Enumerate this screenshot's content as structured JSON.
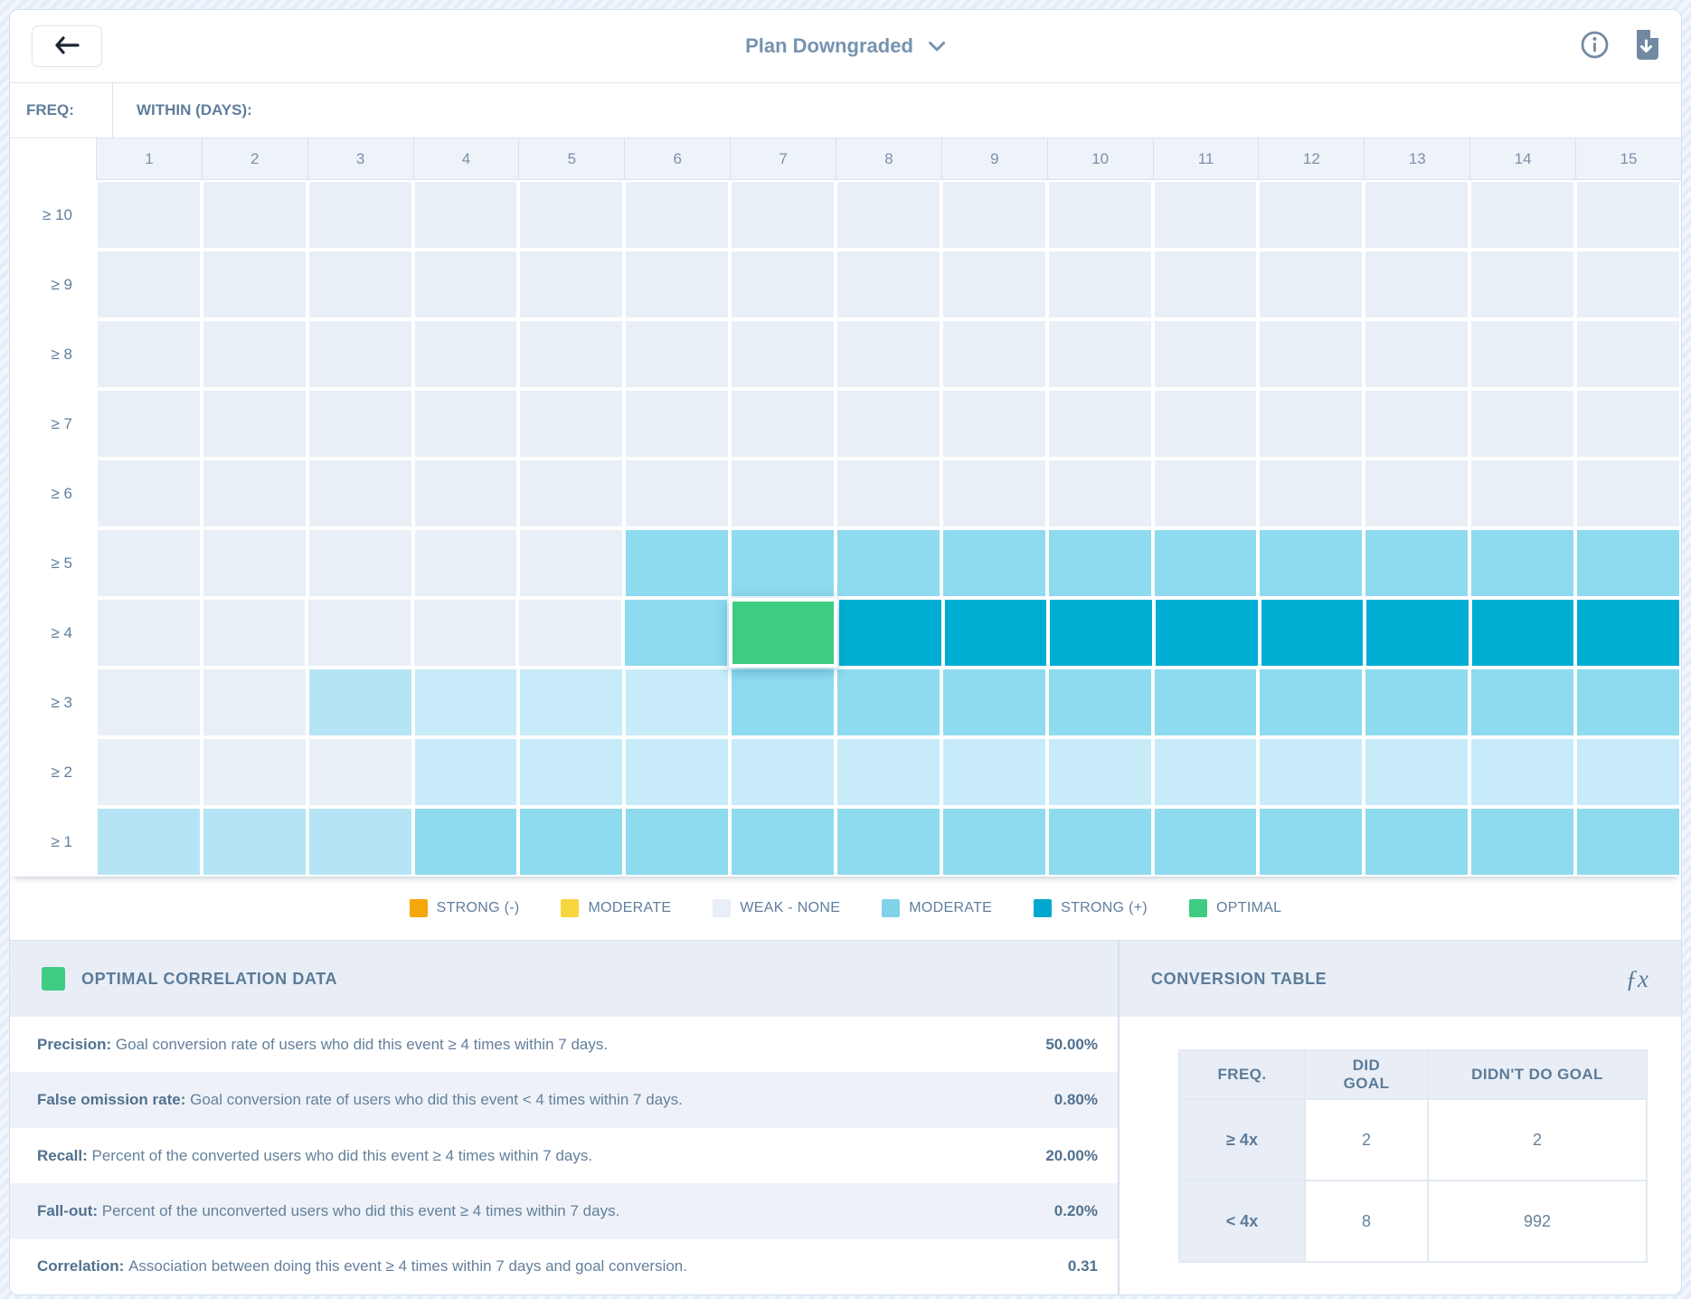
{
  "header": {
    "title": "Plan Downgraded"
  },
  "axes": {
    "freq_label": "FREQ:",
    "within_label": "WITHIN (DAYS):",
    "columns": [
      "1",
      "2",
      "3",
      "4",
      "5",
      "6",
      "7",
      "8",
      "9",
      "10",
      "11",
      "12",
      "13",
      "14",
      "15"
    ],
    "rows": [
      "≥ 10",
      "≥ 9",
      "≥ 8",
      "≥ 7",
      "≥ 6",
      "≥ 5",
      "≥ 4",
      "≥ 3",
      "≥ 2",
      "≥ 1"
    ]
  },
  "colors": {
    "W": "#e9eff7",
    "L": "#c7ebf8",
    "L2": "#b5e5f4",
    "M": "#8edaee",
    "S": "#00aed3",
    "O": "#3ecc83",
    "strong_negative": "#f5a60b",
    "moderate_negative": "#f8d73e",
    "accent_green": "#3ecc83"
  },
  "chart_data": {
    "type": "heatmap",
    "title": "Plan Downgraded",
    "xlabel": "WITHIN (DAYS):",
    "ylabel": "FREQ:",
    "x": [
      1,
      2,
      3,
      4,
      5,
      6,
      7,
      8,
      9,
      10,
      11,
      12,
      13,
      14,
      15
    ],
    "y": [
      "≥ 10",
      "≥ 9",
      "≥ 8",
      "≥ 7",
      "≥ 6",
      "≥ 5",
      "≥ 4",
      "≥ 3",
      "≥ 2",
      "≥ 1"
    ],
    "value_scale": [
      "W = weak-none",
      "L/L2 = weak-moderate",
      "M = moderate",
      "S = strong positive",
      "O = optimal"
    ],
    "cells": [
      [
        "W",
        "W",
        "W",
        "W",
        "W",
        "W",
        "W",
        "W",
        "W",
        "W",
        "W",
        "W",
        "W",
        "W",
        "W"
      ],
      [
        "W",
        "W",
        "W",
        "W",
        "W",
        "W",
        "W",
        "W",
        "W",
        "W",
        "W",
        "W",
        "W",
        "W",
        "W"
      ],
      [
        "W",
        "W",
        "W",
        "W",
        "W",
        "W",
        "W",
        "W",
        "W",
        "W",
        "W",
        "W",
        "W",
        "W",
        "W"
      ],
      [
        "W",
        "W",
        "W",
        "W",
        "W",
        "W",
        "W",
        "W",
        "W",
        "W",
        "W",
        "W",
        "W",
        "W",
        "W"
      ],
      [
        "W",
        "W",
        "W",
        "W",
        "W",
        "W",
        "W",
        "W",
        "W",
        "W",
        "W",
        "W",
        "W",
        "W",
        "W"
      ],
      [
        "W",
        "W",
        "W",
        "W",
        "W",
        "M",
        "M",
        "M",
        "M",
        "M",
        "M",
        "M",
        "M",
        "M",
        "M"
      ],
      [
        "W",
        "W",
        "W",
        "W",
        "W",
        "M",
        "O",
        "S",
        "S",
        "S",
        "S",
        "S",
        "S",
        "S",
        "S"
      ],
      [
        "W",
        "W",
        "L2",
        "L",
        "L",
        "L",
        "M",
        "M",
        "M",
        "M",
        "M",
        "M",
        "M",
        "M",
        "M"
      ],
      [
        "W",
        "W",
        "W",
        "L",
        "L",
        "L",
        "L",
        "L",
        "L",
        "L",
        "L",
        "L",
        "L",
        "L",
        "L"
      ],
      [
        "L2",
        "L2",
        "L2",
        "M",
        "M",
        "M",
        "M",
        "M",
        "M",
        "M",
        "M",
        "M",
        "M",
        "M",
        "M"
      ]
    ],
    "optimal_cell": {
      "freq": "≥ 4",
      "within_days": 7
    },
    "legend": [
      {
        "label": "STRONG (-)",
        "color": "#f5a60b",
        "dotted": false
      },
      {
        "label": "MODERATE",
        "color": "#f8d73e",
        "dotted": false
      },
      {
        "label": "WEAK - NONE",
        "color": "#e9eff7",
        "dotted": false
      },
      {
        "label": "MODERATE",
        "color": "#7fd2e8",
        "dotted": true
      },
      {
        "label": "STRONG (+)",
        "color": "#00a8cf",
        "dotted": false
      },
      {
        "label": "OPTIMAL",
        "color": "#3ecc83",
        "dotted": false
      }
    ],
    "legend_position": "bottom"
  },
  "optimal_panel": {
    "title": "OPTIMAL CORRELATION DATA",
    "rows": [
      {
        "label": "Precision:",
        "description": "Goal conversion rate of users who did this event ≥ 4 times within 7 days.",
        "value": "50.00%"
      },
      {
        "label": "False omission rate:",
        "description": "Goal conversion rate of users who did this event < 4 times within 7 days.",
        "value": "0.80%"
      },
      {
        "label": "Recall:",
        "description": "Percent of the converted users who did this event ≥ 4 times within 7 days.",
        "value": "20.00%"
      },
      {
        "label": "Fall-out:",
        "description": "Percent of the unconverted users who did this event ≥ 4 times within 7 days.",
        "value": "0.20%"
      },
      {
        "label": "Correlation:",
        "description": "Association between doing this event ≥ 4 times within 7 days and goal conversion.",
        "value": "0.31"
      }
    ]
  },
  "conversion_panel": {
    "title": "CONVERSION TABLE",
    "fx_label": "ƒx",
    "table": {
      "headers": [
        "FREQ.",
        "DID GOAL",
        "DIDN'T DO GOAL"
      ],
      "rows": [
        [
          "≥ 4x",
          "2",
          "2"
        ],
        [
          "< 4x",
          "8",
          "992"
        ]
      ]
    }
  }
}
